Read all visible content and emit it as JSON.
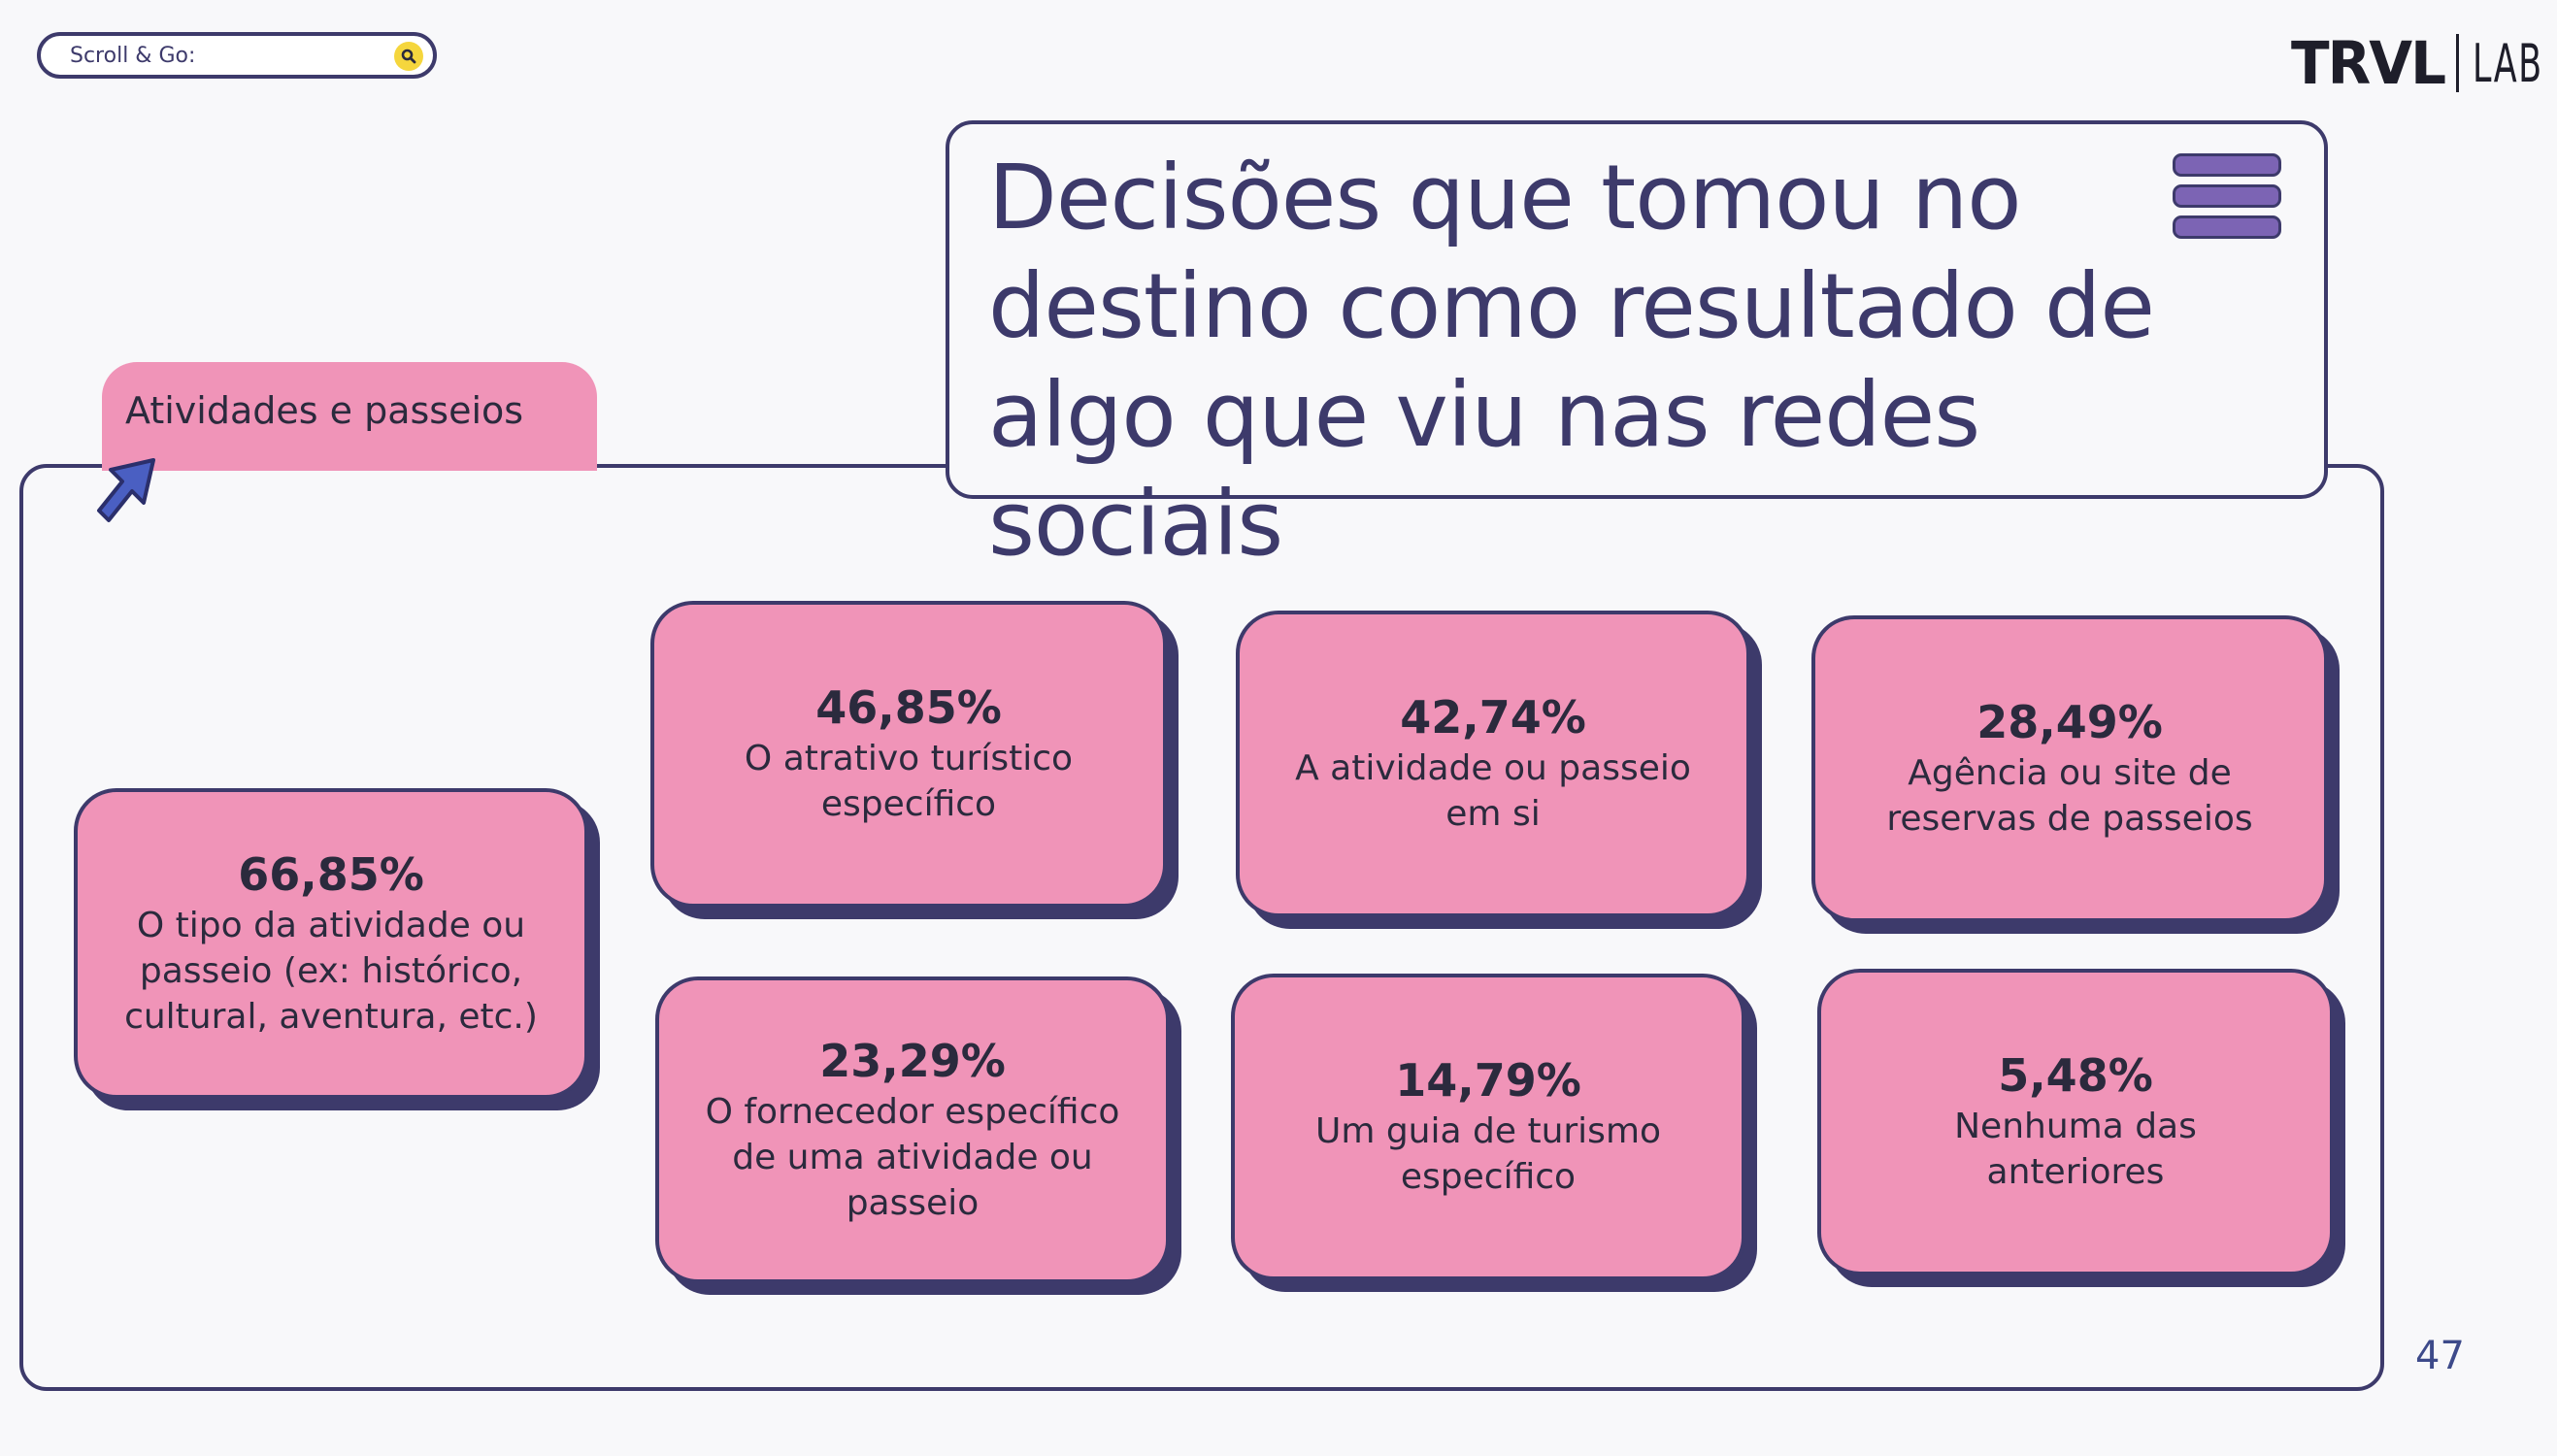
{
  "search": {
    "label": "Scroll & Go:"
  },
  "logo": {
    "brand": "TRVL",
    "suffix": "LAB"
  },
  "tab": {
    "label": "Atividades e passeios"
  },
  "title": {
    "lines": [
      "Decisões que tomou no",
      "destino como resultado de",
      "algo que viu nas redes sociais"
    ]
  },
  "cards": [
    {
      "percent": "66,85%",
      "description": "O tipo da atividade ou passeio (ex: histórico, cultural, aventura, etc.)"
    },
    {
      "percent": "46,85%",
      "description": "O atrativo turístico específico"
    },
    {
      "percent": "42,74%",
      "description": "A atividade ou passeio em si"
    },
    {
      "percent": "28,49%",
      "description": "Agência ou site de reservas de passeios"
    },
    {
      "percent": "23,29%",
      "description": "O fornecedor específico de uma atividade ou passeio"
    },
    {
      "percent": "14,79%",
      "description": "Um guia de turismo específico"
    },
    {
      "percent": "5,48%",
      "description": "Nenhuma das anteriores"
    }
  ],
  "page_number": "47",
  "colors": {
    "pink": "#f094b8",
    "navy": "#3d3a6b",
    "purple": "#7c64b4",
    "yellow": "#f5d63d"
  },
  "icons": [
    "search-icon",
    "cursor-arrow-icon",
    "menu-icon"
  ]
}
